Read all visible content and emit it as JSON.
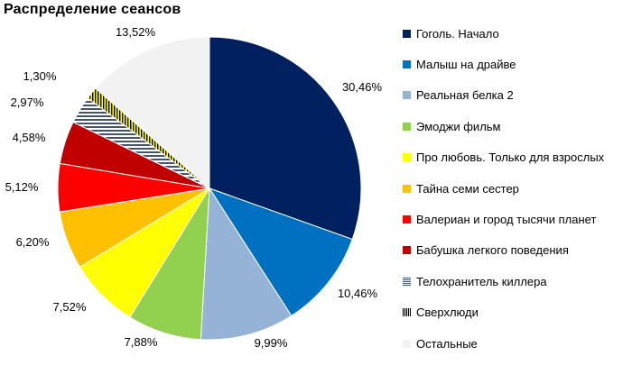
{
  "chart_data": {
    "type": "pie",
    "title": "Распределение сеансов",
    "slices": [
      {
        "label": "Гоголь. Начало",
        "value": 30.46,
        "value_label": "30,46%",
        "color": "#002060",
        "pattern": "none"
      },
      {
        "label": "Малыш на драйве",
        "value": 10.46,
        "value_label": "10,46%",
        "color": "#0070c0",
        "pattern": "none"
      },
      {
        "label": "Реальная белка 2",
        "value": 9.99,
        "value_label": "9,99%",
        "color": "#95b3d7",
        "pattern": "none"
      },
      {
        "label": "Эмоджи фильм",
        "value": 7.88,
        "value_label": "7,88%",
        "color": "#92d050",
        "pattern": "none"
      },
      {
        "label": "Про любовь. Только для взрослых",
        "value": 7.52,
        "value_label": "7,52%",
        "color": "#ffff00",
        "pattern": "none"
      },
      {
        "label": "Тайна семи сестер",
        "value": 6.2,
        "value_label": "6,20%",
        "color": "#ffc000",
        "pattern": "none"
      },
      {
        "label": "Валериан и город тысячи планет",
        "value": 5.12,
        "value_label": "5,12%",
        "color": "#ff0000",
        "pattern": "none"
      },
      {
        "label": "Бабушка легкого поведения",
        "value": 4.58,
        "value_label": "4,58%",
        "color": "#c00000",
        "pattern": "none"
      },
      {
        "label": "Телохранитель киллера",
        "value": 2.97,
        "value_label": "2,97%",
        "color": "#44546a",
        "pattern": "horizontal-stripes"
      },
      {
        "label": "Сверхлюди",
        "value": 1.3,
        "value_label": "1,30%",
        "color": "#c0a000",
        "pattern": "vertical-stripes"
      },
      {
        "label": "Остальные",
        "value": 13.52,
        "value_label": "13,52%",
        "color": "#f2f2f2",
        "pattern": "none"
      }
    ],
    "legend_position": "right"
  }
}
